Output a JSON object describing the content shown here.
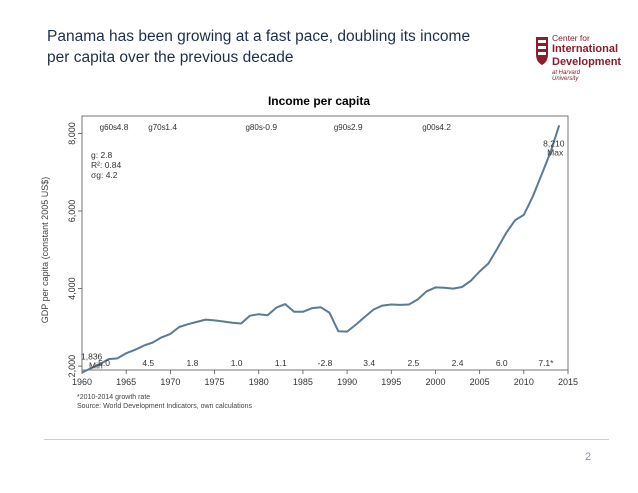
{
  "slide": {
    "title": "Panama has been growing at a fast pace, doubling its income per capita over the previous decade",
    "page_number": "2"
  },
  "logo": {
    "line1": "Center for",
    "line2": "International",
    "line3": "Development",
    "line4": "at Harvard University",
    "color": "#8c1d2b"
  },
  "chart_data": {
    "type": "line",
    "title": "Income per capita",
    "ylabel": "GDP per capita (constant 2005 US$)",
    "xlabel": "",
    "xlim": [
      1960,
      2015
    ],
    "ylim": [
      1900,
      8450
    ],
    "xticks": [
      "1960",
      "1965",
      "1970",
      "1975",
      "1980",
      "1985",
      "1990",
      "1995",
      "2000",
      "2005",
      "2010",
      "2015"
    ],
    "yticks": [
      "2,000",
      "4,000",
      "6,000",
      "8,000"
    ],
    "line_color": "#5b7a96",
    "series": [
      {
        "x": [
          1960,
          1961,
          1962,
          1963,
          1964,
          1965,
          1966,
          1967,
          1968,
          1969,
          1970,
          1971,
          1972,
          1973,
          1974,
          1975,
          1976,
          1977,
          1978,
          1979,
          1980,
          1981,
          1982,
          1983,
          1984,
          1985,
          1986,
          1987,
          1988,
          1989,
          1990,
          1991,
          1992,
          1993,
          1994,
          1995,
          1996,
          1997,
          1998,
          1999,
          2000,
          2001,
          2002,
          2003,
          2004,
          2005,
          2006,
          2007,
          2008,
          2009,
          2010,
          2011,
          2012,
          2013,
          2014
        ],
        "y": [
          1836,
          1940,
          2050,
          2180,
          2200,
          2330,
          2420,
          2530,
          2610,
          2740,
          2830,
          3010,
          3080,
          3140,
          3200,
          3180,
          3150,
          3120,
          3100,
          3300,
          3340,
          3310,
          3510,
          3600,
          3400,
          3400,
          3490,
          3520,
          3380,
          2900,
          2890,
          3070,
          3270,
          3460,
          3560,
          3590,
          3580,
          3590,
          3720,
          3930,
          4030,
          4020,
          4000,
          4040,
          4200,
          4440,
          4650,
          5030,
          5430,
          5760,
          5900,
          6370,
          6930,
          7500,
          8210
        ]
      }
    ],
    "annotations": {
      "min": {
        "value": "1,836",
        "label": "Min"
      },
      "max": {
        "value": "8,210",
        "label": "Max"
      },
      "stats": [
        "g: 2.8",
        "R²: 0.84",
        "σg: 4.2"
      ],
      "decade_growth": [
        {
          "label": "g60s",
          "value": "4.8"
        },
        {
          "label": "g70s",
          "value": "1.4"
        },
        {
          "label": "g80s",
          "value": "-0.9"
        },
        {
          "label": "g90s",
          "value": "2.9"
        },
        {
          "label": "g00s",
          "value": "4.2"
        }
      ],
      "period_growth": [
        {
          "x": 1962.5,
          "value": "5.0"
        },
        {
          "x": 1967.5,
          "value": "4.5"
        },
        {
          "x": 1972.5,
          "value": "1.8"
        },
        {
          "x": 1977.5,
          "value": "1.0"
        },
        {
          "x": 1982.5,
          "value": "1.1"
        },
        {
          "x": 1987.5,
          "value": "-2.8"
        },
        {
          "x": 1992.5,
          "value": "3.4"
        },
        {
          "x": 1997.5,
          "value": "2.5"
        },
        {
          "x": 2002.5,
          "value": "2.4"
        },
        {
          "x": 2007.5,
          "value": "6.0"
        },
        {
          "x": 2012.5,
          "value": "7.1*"
        }
      ]
    },
    "notes": [
      "*2010-2014 growth rate",
      "Source: World Development Indicators, own calculations"
    ]
  }
}
